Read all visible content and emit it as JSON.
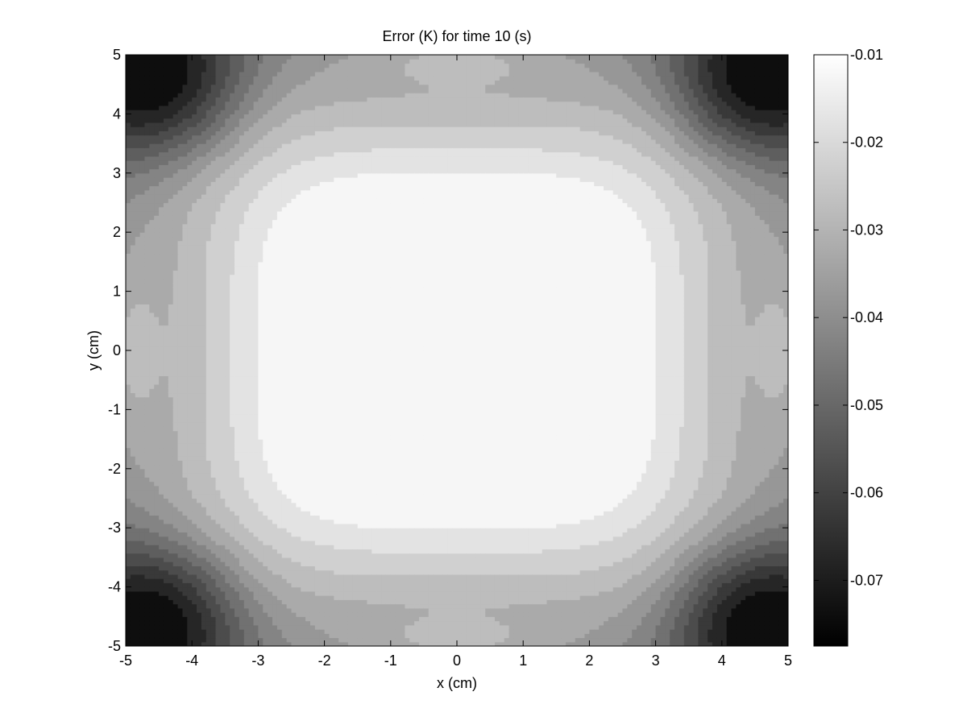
{
  "chart_data": {
    "type": "contour",
    "title": "Error (K) for time 10 (s)",
    "xlabel": "x (cm)",
    "ylabel": "y (cm)",
    "xlim": [
      -5,
      5
    ],
    "ylim": [
      -5,
      5
    ],
    "x_ticks": [
      -5,
      -4,
      -3,
      -2,
      -1,
      0,
      1,
      2,
      3,
      4,
      5
    ],
    "y_ticks": [
      -5,
      -4,
      -3,
      -2,
      -1,
      0,
      1,
      2,
      3,
      4,
      5
    ],
    "colormap": "gray",
    "clim": [
      -0.0775,
      -0.01
    ],
    "colorbar_ticks": [
      -0.01,
      -0.02,
      -0.03,
      -0.04,
      -0.05,
      -0.06,
      -0.07
    ],
    "contour_levels": [
      -0.0775,
      -0.07,
      -0.065,
      -0.06,
      -0.055,
      -0.05,
      -0.045,
      -0.04,
      -0.035,
      -0.03,
      -0.025,
      -0.02,
      -0.015,
      -0.01
    ],
    "features": [
      {
        "location": "center",
        "region": "x from -2.7 to 2.7, y from -2.7 to 2.7",
        "value": -0.01,
        "note": "maximum (least negative) error"
      },
      {
        "location": "corners",
        "centers": [
          [
            -4.5,
            4.5
          ],
          [
            4.5,
            4.5
          ],
          [
            -4.5,
            -4.5
          ],
          [
            4.5,
            -4.5
          ]
        ],
        "value": -0.0775,
        "note": "minimum (most negative) error"
      }
    ]
  }
}
